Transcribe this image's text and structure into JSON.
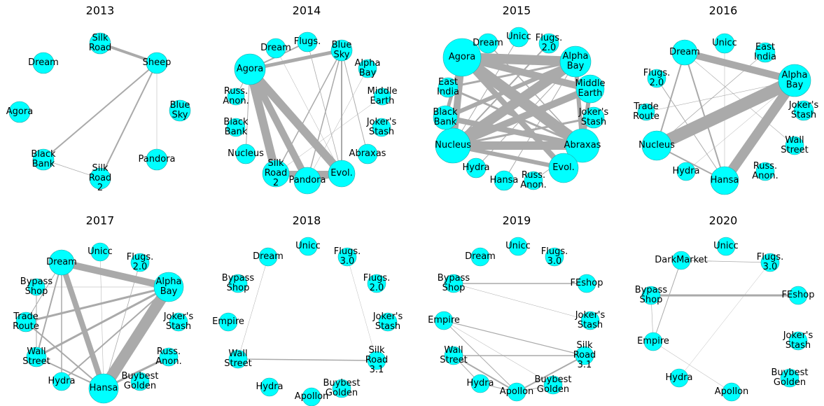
{
  "panels": [
    {
      "title": "2013",
      "nodes": [
        "Silk\nRoad",
        "Sheep",
        "Dream",
        "Agora",
        "Blue\nSky",
        "Black\nBank",
        "Silk\nRoad\n2",
        "Pandora"
      ]
    },
    {
      "title": "2014",
      "nodes": [
        "Dream",
        "Flugs.",
        "Blue\nSky",
        "Alpha\nBay",
        "Middle\nEarth",
        "Joker's\nStash",
        "Abraxas",
        "Evol.",
        "Pandora",
        "Silk\nRoad\n2",
        "Nucleus",
        "Black\nBank",
        "Russ.\nAnon.",
        "Agora"
      ]
    },
    {
      "title": "2015",
      "nodes": [
        "Unicc",
        "Flugs.\n2.0",
        "Alpha\nBay",
        "Middle\nEarth",
        "Joker's\nStash",
        "Abraxas",
        "Evol.",
        "Russ.\nAnon.",
        "Hansa",
        "Hydra",
        "Nucleus",
        "Black\nBank",
        "East\nIndia",
        "Agora",
        "Dream"
      ]
    },
    {
      "title": "2016",
      "nodes": [
        "Unicc",
        "East\nIndia",
        "Alpha\nBay",
        "Joker's\nStash",
        "Wall\nStreet",
        "Russ.\nAnon.",
        "Hansa",
        "Hydra",
        "Nucleus",
        "Trade\nRoute",
        "Flugs.\n2.0",
        "Dream"
      ]
    },
    {
      "title": "2017",
      "nodes": [
        "Dream",
        "Unicc",
        "Flugs.\n2.0",
        "Alpha\nBay",
        "Joker's\nStash",
        "Russ.\nAnon.",
        "Buybest\nGolden",
        "Hansa",
        "Hydra",
        "Wall\nStreet",
        "Trade\nRoute",
        "Bypass\nShop"
      ]
    },
    {
      "title": "2018",
      "nodes": [
        "Dream",
        "Unicc",
        "Flugs.\n3.0",
        "Flugs.\n2.0",
        "Joker's\nStash",
        "Silk\nRoad\n3.1",
        "Buybest\nGolden",
        "Apollon",
        "Hydra",
        "Wall\nStreet",
        "Empire",
        "Bypass\nShop"
      ]
    },
    {
      "title": "2019",
      "nodes": [
        "Dream",
        "Unicc",
        "Flugs.\n3.0",
        "FEshop",
        "Joker's\nStash",
        "Silk\nRoad\n3.1",
        "Buybest\nGolden",
        "Apollon",
        "Hydra",
        "Wall\nStreet",
        "Empire",
        "Bypass\nShop"
      ]
    },
    {
      "title": "2020",
      "nodes": [
        "DarkMarket",
        "Unicc",
        "Flugs.\n3.0",
        "FEshop",
        "Joker's\nStash",
        "Buybest\nGolden",
        "Apollon",
        "Hydra",
        "Empire",
        "Bypass\nShop"
      ]
    }
  ]
}
